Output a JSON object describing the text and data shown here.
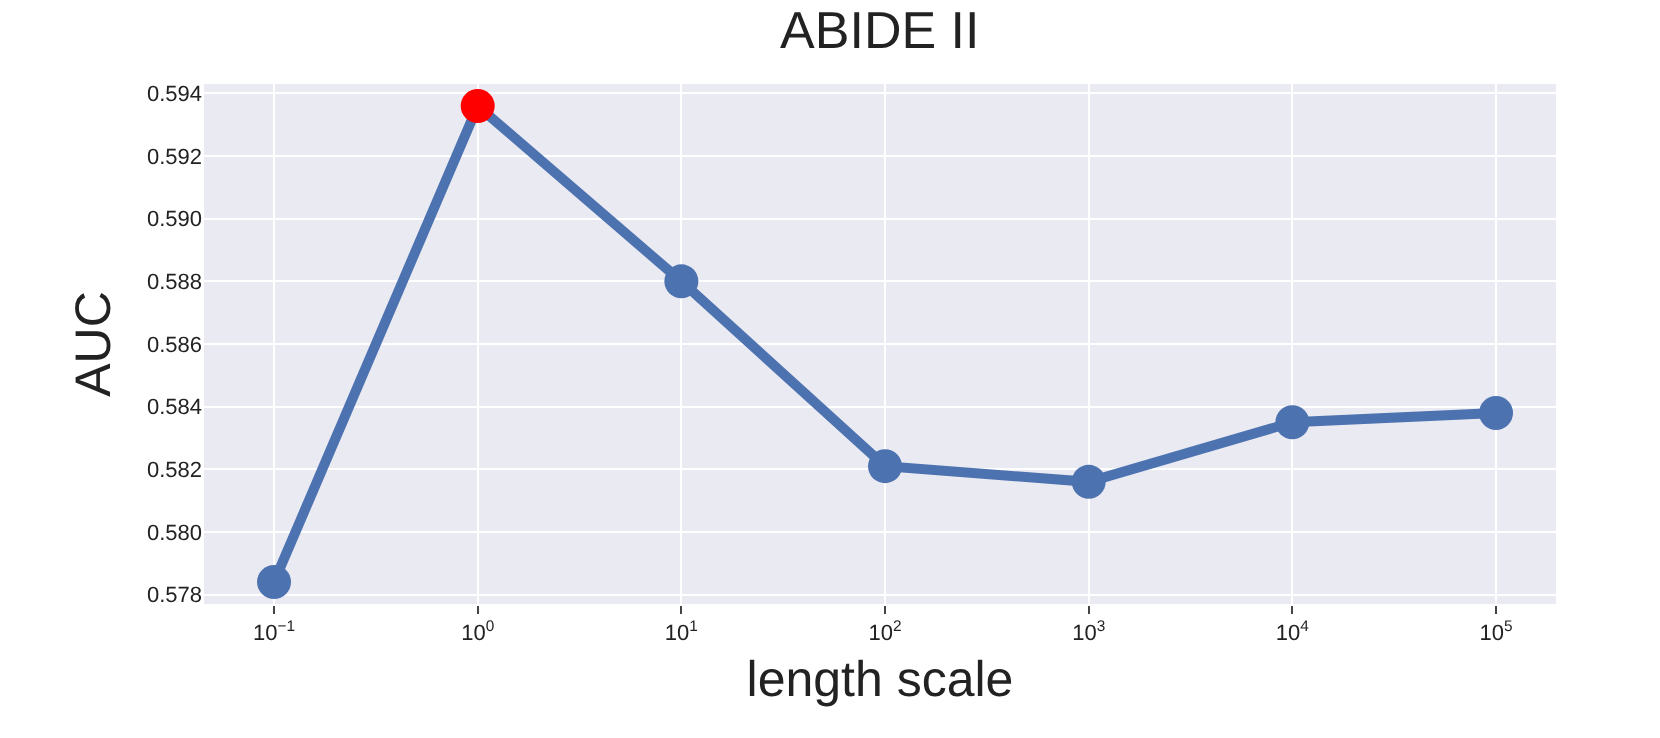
{
  "chart_data": {
    "type": "line",
    "title": "ABIDE II",
    "xlabel": "length scale",
    "ylabel": "AUC",
    "log": "x",
    "x": [
      0.1,
      1,
      10,
      100,
      1000,
      10000,
      100000
    ],
    "series": [
      {
        "color": "#4c72b0",
        "colors": [
          "#4c72b0",
          "#ff0000",
          "#4c72b0",
          "#4c72b0",
          "#4c72b0",
          "#4c72b0",
          "#4c72b0"
        ],
        "values": [
          0.5784,
          0.5936,
          0.588,
          0.5821,
          0.5816,
          0.5835,
          0.5838
        ]
      }
    ],
    "xlim": [
      0.0453,
      197000
    ],
    "xticks": [
      {
        "value": 0.1,
        "label": "10$^{−1}$"
      },
      {
        "value": 1,
        "label": "10$^{0}$"
      },
      {
        "value": 10,
        "label": "10$^{1}$"
      },
      {
        "value": 100,
        "label": "10$^{2}$"
      },
      {
        "value": 1000,
        "label": "10$^{3}$"
      },
      {
        "value": 10000,
        "label": "10$^{4}$"
      },
      {
        "value": 100000,
        "label": "10$^{5}$"
      }
    ],
    "ylim": [
      0.5777,
      0.5943
    ],
    "yticks": [
      {
        "value": 0.578,
        "label": "0.578"
      },
      {
        "value": 0.58,
        "label": "0.580"
      },
      {
        "value": 0.582,
        "label": "0.582"
      },
      {
        "value": 0.584,
        "label": "0.584"
      },
      {
        "value": 0.586,
        "label": "0.586"
      },
      {
        "value": 0.588,
        "label": "0.588"
      },
      {
        "value": 0.59,
        "label": "0.590"
      },
      {
        "value": 0.592,
        "label": "0.592"
      },
      {
        "value": 0.594,
        "label": "0.594"
      }
    ],
    "grid": true,
    "marker": "circle",
    "line_style": "solid"
  }
}
